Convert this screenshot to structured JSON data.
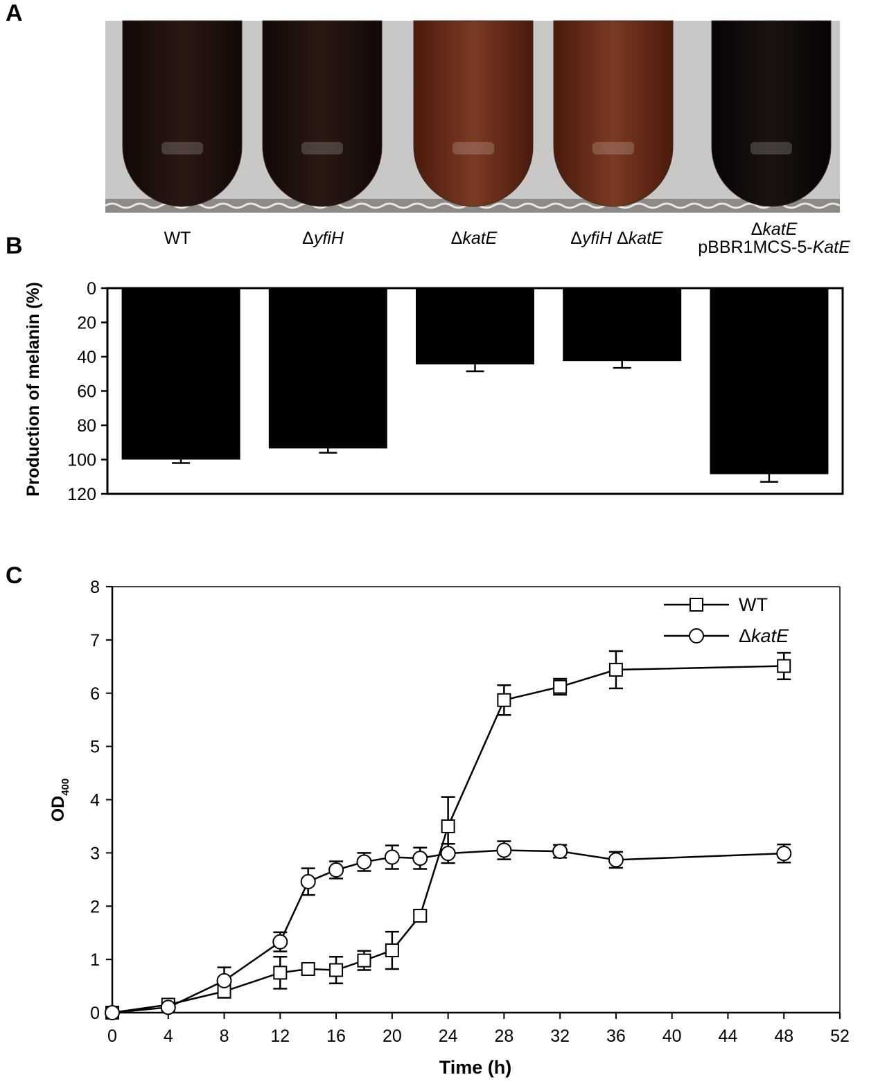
{
  "panels": {
    "a": "A",
    "b": "B",
    "c": "C"
  },
  "colors": {
    "bar": "#000000",
    "tube_dark": "#1c0f0c",
    "tube_brown": "#6b2a17",
    "photo_bg": "#c9c8c6"
  },
  "tubes": [
    {
      "name": "WT",
      "shade": "dark"
    },
    {
      "name": "ΔyfiH",
      "shade": "dark"
    },
    {
      "name": "ΔkatE",
      "shade": "brown"
    },
    {
      "name": "ΔyfiH ΔkatE",
      "shade": "brown"
    },
    {
      "name": "ΔkatE pBBR1MCS-5-KatE",
      "shade": "black"
    }
  ],
  "labels": {
    "wt": "WT",
    "delta": "Δ",
    "yfih": "yfiH",
    "kate": "katE",
    "plasmid": "pBBR1MCS-5-",
    "kate_cap": "KatE"
  },
  "chart_data": [
    {
      "type": "bar",
      "panel": "B",
      "ylabel": "Production of melanin (%)",
      "ylim": [
        0,
        120
      ],
      "yticks": [
        0,
        20,
        40,
        60,
        80,
        100,
        120
      ],
      "inverted_y": true,
      "categories": [
        "WT",
        "ΔyfiH",
        "ΔkatE",
        "ΔyfiH ΔkatE",
        "ΔkatE pBBR1MCS-5-KatE"
      ],
      "values": [
        100,
        93.5,
        44.5,
        42.5,
        108.5
      ],
      "errors": [
        2,
        2.5,
        4,
        4,
        4.5
      ]
    },
    {
      "type": "line",
      "panel": "C",
      "xlabel": "Time (h)",
      "ylabel": "OD",
      "ylabel_sub": "400",
      "xlim": [
        0,
        52
      ],
      "ylim": [
        0,
        8
      ],
      "xticks": [
        0,
        4,
        8,
        12,
        16,
        20,
        24,
        28,
        32,
        36,
        40,
        44,
        48,
        52
      ],
      "yticks": [
        0,
        1,
        2,
        3,
        4,
        5,
        6,
        7,
        8
      ],
      "legend_position": "top-right",
      "series": [
        {
          "name": "WT",
          "marker": "square",
          "x": [
            0,
            4,
            8,
            12,
            14,
            16,
            18,
            20,
            22,
            24,
            28,
            32,
            36,
            48
          ],
          "y": [
            0,
            0.15,
            0.4,
            0.75,
            0.82,
            0.8,
            0.98,
            1.17,
            1.82,
            3.5,
            5.87,
            6.12,
            6.44,
            6.51
          ],
          "err": [
            0,
            0.05,
            0.12,
            0.3,
            0.1,
            0.25,
            0.18,
            0.35,
            0.1,
            0.55,
            0.28,
            0.15,
            0.35,
            0.25
          ]
        },
        {
          "name": "ΔkatE",
          "marker": "circle",
          "x": [
            0,
            4,
            8,
            12,
            14,
            16,
            18,
            20,
            22,
            24,
            28,
            32,
            36,
            48
          ],
          "y": [
            0,
            0.1,
            0.6,
            1.33,
            2.46,
            2.68,
            2.83,
            2.92,
            2.9,
            2.99,
            3.05,
            3.03,
            2.87,
            2.99
          ],
          "err": [
            0,
            0.05,
            0.25,
            0.18,
            0.25,
            0.16,
            0.17,
            0.22,
            0.2,
            0.18,
            0.17,
            0.12,
            0.15,
            0.17
          ]
        }
      ]
    }
  ]
}
